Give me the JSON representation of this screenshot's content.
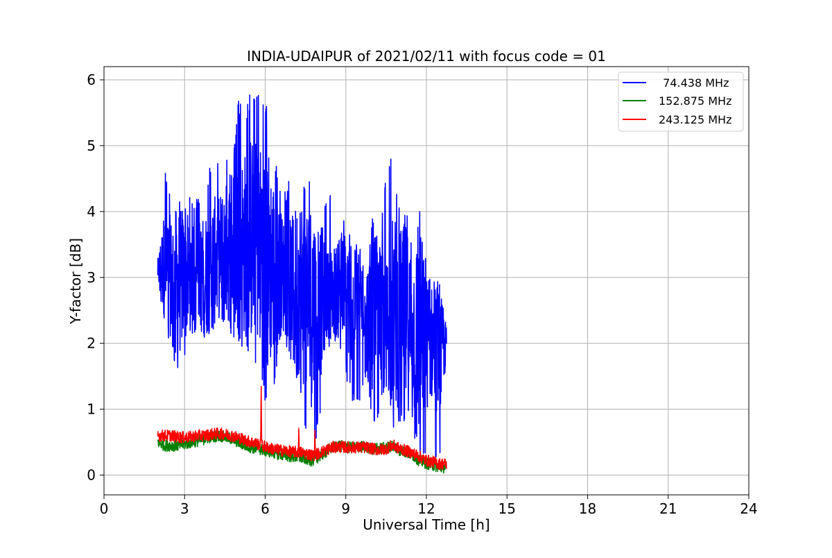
{
  "chart_data": {
    "type": "line",
    "title": "INDIA-UDAIPUR of 2021/02/11 with focus code = 01",
    "xlabel": "Universal Time [h]",
    "ylabel": "Y-factor [dB]",
    "xlim": [
      0,
      24
    ],
    "ylim": [
      -0.3,
      6.2
    ],
    "xticks": [
      0,
      3,
      6,
      9,
      12,
      15,
      18,
      21,
      24
    ],
    "xtick_labels": [
      "0",
      "3",
      "6",
      "9",
      "12",
      "15",
      "18",
      "21",
      "24"
    ],
    "yticks": [
      0,
      1,
      2,
      3,
      4,
      5,
      6
    ],
    "ytick_labels": [
      "0",
      "1",
      "2",
      "3",
      "4",
      "5",
      "6"
    ],
    "grid": true,
    "legend_position": "top-right",
    "x_range_of_data": [
      2.0,
      12.75
    ],
    "series": [
      {
        "name": "  74.438 MHz",
        "color": "#0000ff",
        "x": [
          2.0,
          2.25,
          2.5,
          2.75,
          3.0,
          3.25,
          3.5,
          3.75,
          4.0,
          4.25,
          4.5,
          4.75,
          5.0,
          5.25,
          5.5,
          5.75,
          6.0,
          6.25,
          6.5,
          6.75,
          7.0,
          7.25,
          7.5,
          7.75,
          8.0,
          8.25,
          8.5,
          8.75,
          9.0,
          9.25,
          9.5,
          9.75,
          10.0,
          10.25,
          10.5,
          10.75,
          11.0,
          11.25,
          11.5,
          11.75,
          12.0,
          12.25,
          12.5,
          12.75
        ],
        "y_center": [
          3.1,
          3.2,
          3.0,
          2.9,
          3.0,
          3.0,
          3.1,
          3.0,
          3.2,
          3.3,
          3.4,
          3.4,
          3.5,
          3.5,
          3.6,
          3.5,
          3.3,
          3.2,
          3.1,
          3.0,
          2.9,
          2.9,
          2.7,
          2.6,
          2.6,
          2.7,
          2.8,
          2.8,
          2.7,
          2.6,
          2.6,
          2.6,
          2.5,
          2.4,
          2.3,
          2.5,
          2.4,
          2.4,
          2.2,
          2.1,
          2.0,
          2.0,
          1.8,
          2.0
        ],
        "y_max": [
          3.6,
          4.8,
          4.2,
          4.3,
          4.1,
          4.3,
          4.2,
          4.1,
          4.9,
          4.8,
          4.9,
          4.6,
          5.7,
          5.5,
          5.9,
          5.9,
          5.8,
          4.9,
          4.6,
          4.3,
          4.7,
          4.6,
          4.4,
          4.5,
          3.8,
          4.3,
          4.4,
          3.6,
          4.0,
          3.6,
          3.5,
          3.2,
          4.0,
          3.4,
          4.8,
          4.8,
          4.2,
          4.1,
          3.6,
          4.1,
          3.2,
          3.0,
          3.0,
          2.3
        ],
        "y_min": [
          2.9,
          2.2,
          1.9,
          1.5,
          1.8,
          2.1,
          2.2,
          1.9,
          2.0,
          2.2,
          2.2,
          2.0,
          1.9,
          1.8,
          1.7,
          1.7,
          1.1,
          1.0,
          1.9,
          2.0,
          1.7,
          1.3,
          0.6,
          0.3,
          0.7,
          1.9,
          2.0,
          1.9,
          1.4,
          1.1,
          0.9,
          1.5,
          0.6,
          0.9,
          1.2,
          0.7,
          0.8,
          0.7,
          0.7,
          0.1,
          0.2,
          0.0,
          0.1,
          1.5
        ]
      },
      {
        "name": "152.875 MHz",
        "color": "#008000",
        "x": [
          2.0,
          2.25,
          2.5,
          2.75,
          3.0,
          3.25,
          3.5,
          3.75,
          4.0,
          4.25,
          4.5,
          4.75,
          5.0,
          5.25,
          5.5,
          5.75,
          6.0,
          6.25,
          6.5,
          6.75,
          7.0,
          7.25,
          7.5,
          7.75,
          8.0,
          8.25,
          8.5,
          8.75,
          9.0,
          9.25,
          9.5,
          9.75,
          10.0,
          10.25,
          10.5,
          10.75,
          11.0,
          11.25,
          11.5,
          11.75,
          12.0,
          12.25,
          12.5,
          12.75
        ],
        "y_center": [
          0.5,
          0.45,
          0.45,
          0.45,
          0.47,
          0.5,
          0.52,
          0.55,
          0.58,
          0.6,
          0.58,
          0.55,
          0.5,
          0.45,
          0.42,
          0.4,
          0.37,
          0.35,
          0.32,
          0.3,
          0.28,
          0.27,
          0.25,
          0.22,
          0.28,
          0.35,
          0.42,
          0.45,
          0.42,
          0.42,
          0.43,
          0.42,
          0.4,
          0.4,
          0.42,
          0.45,
          0.38,
          0.35,
          0.3,
          0.22,
          0.18,
          0.15,
          0.12,
          0.12
        ],
        "y_spread": 0.09
      },
      {
        "name": "243.125 MHz",
        "color": "#ff0000",
        "x": [
          2.0,
          2.25,
          2.5,
          2.75,
          3.0,
          3.25,
          3.5,
          3.75,
          4.0,
          4.25,
          4.5,
          4.75,
          5.0,
          5.25,
          5.5,
          5.75,
          6.0,
          6.25,
          6.5,
          6.75,
          7.0,
          7.25,
          7.5,
          7.75,
          8.0,
          8.25,
          8.5,
          8.75,
          9.0,
          9.25,
          9.5,
          9.75,
          10.0,
          10.25,
          10.5,
          10.75,
          11.0,
          11.25,
          11.5,
          11.75,
          12.0,
          12.25,
          12.5,
          12.75
        ],
        "y_center": [
          0.6,
          0.6,
          0.6,
          0.58,
          0.57,
          0.58,
          0.6,
          0.6,
          0.62,
          0.63,
          0.62,
          0.6,
          0.57,
          0.53,
          0.5,
          0.47,
          0.43,
          0.4,
          0.38,
          0.37,
          0.35,
          0.35,
          0.33,
          0.3,
          0.33,
          0.38,
          0.42,
          0.43,
          0.42,
          0.42,
          0.42,
          0.42,
          0.4,
          0.38,
          0.4,
          0.45,
          0.4,
          0.37,
          0.33,
          0.28,
          0.22,
          0.2,
          0.17,
          0.17
        ],
        "y_spread": 0.09,
        "spikes": [
          [
            5.85,
            1.45
          ],
          [
            7.25,
            0.72
          ],
          [
            7.85,
            0.68
          ]
        ]
      }
    ]
  }
}
